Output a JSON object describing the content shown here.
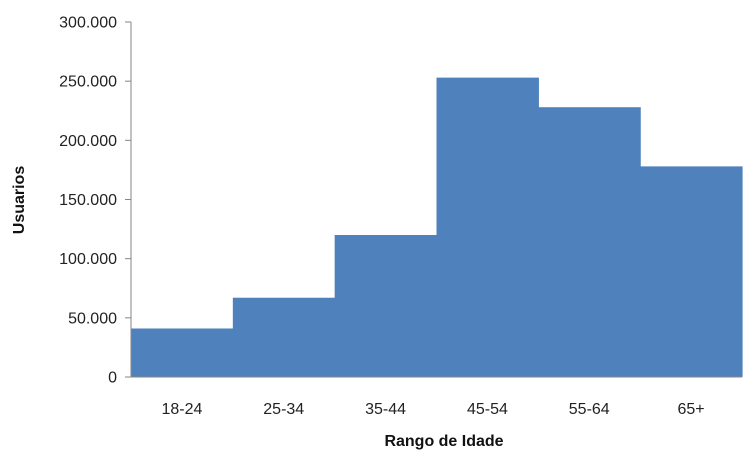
{
  "chart_data": {
    "type": "bar",
    "title": "",
    "xlabel": "Rango de Idade",
    "ylabel": "Usuarios",
    "categories": [
      "18-24",
      "25-34",
      "35-44",
      "45-54",
      "55-64",
      "65+"
    ],
    "values": [
      41000,
      67000,
      120000,
      253000,
      228000,
      178000
    ],
    "ylim": [
      0,
      300000
    ],
    "yticks": [
      0,
      50000,
      100000,
      150000,
      200000,
      250000,
      300000
    ],
    "ytick_labels": [
      "0",
      "50.000",
      "100.000",
      "150.000",
      "200.000",
      "250.000",
      "300.000"
    ],
    "bar_color": "#4f81bd",
    "grid": false,
    "legend": "none"
  }
}
